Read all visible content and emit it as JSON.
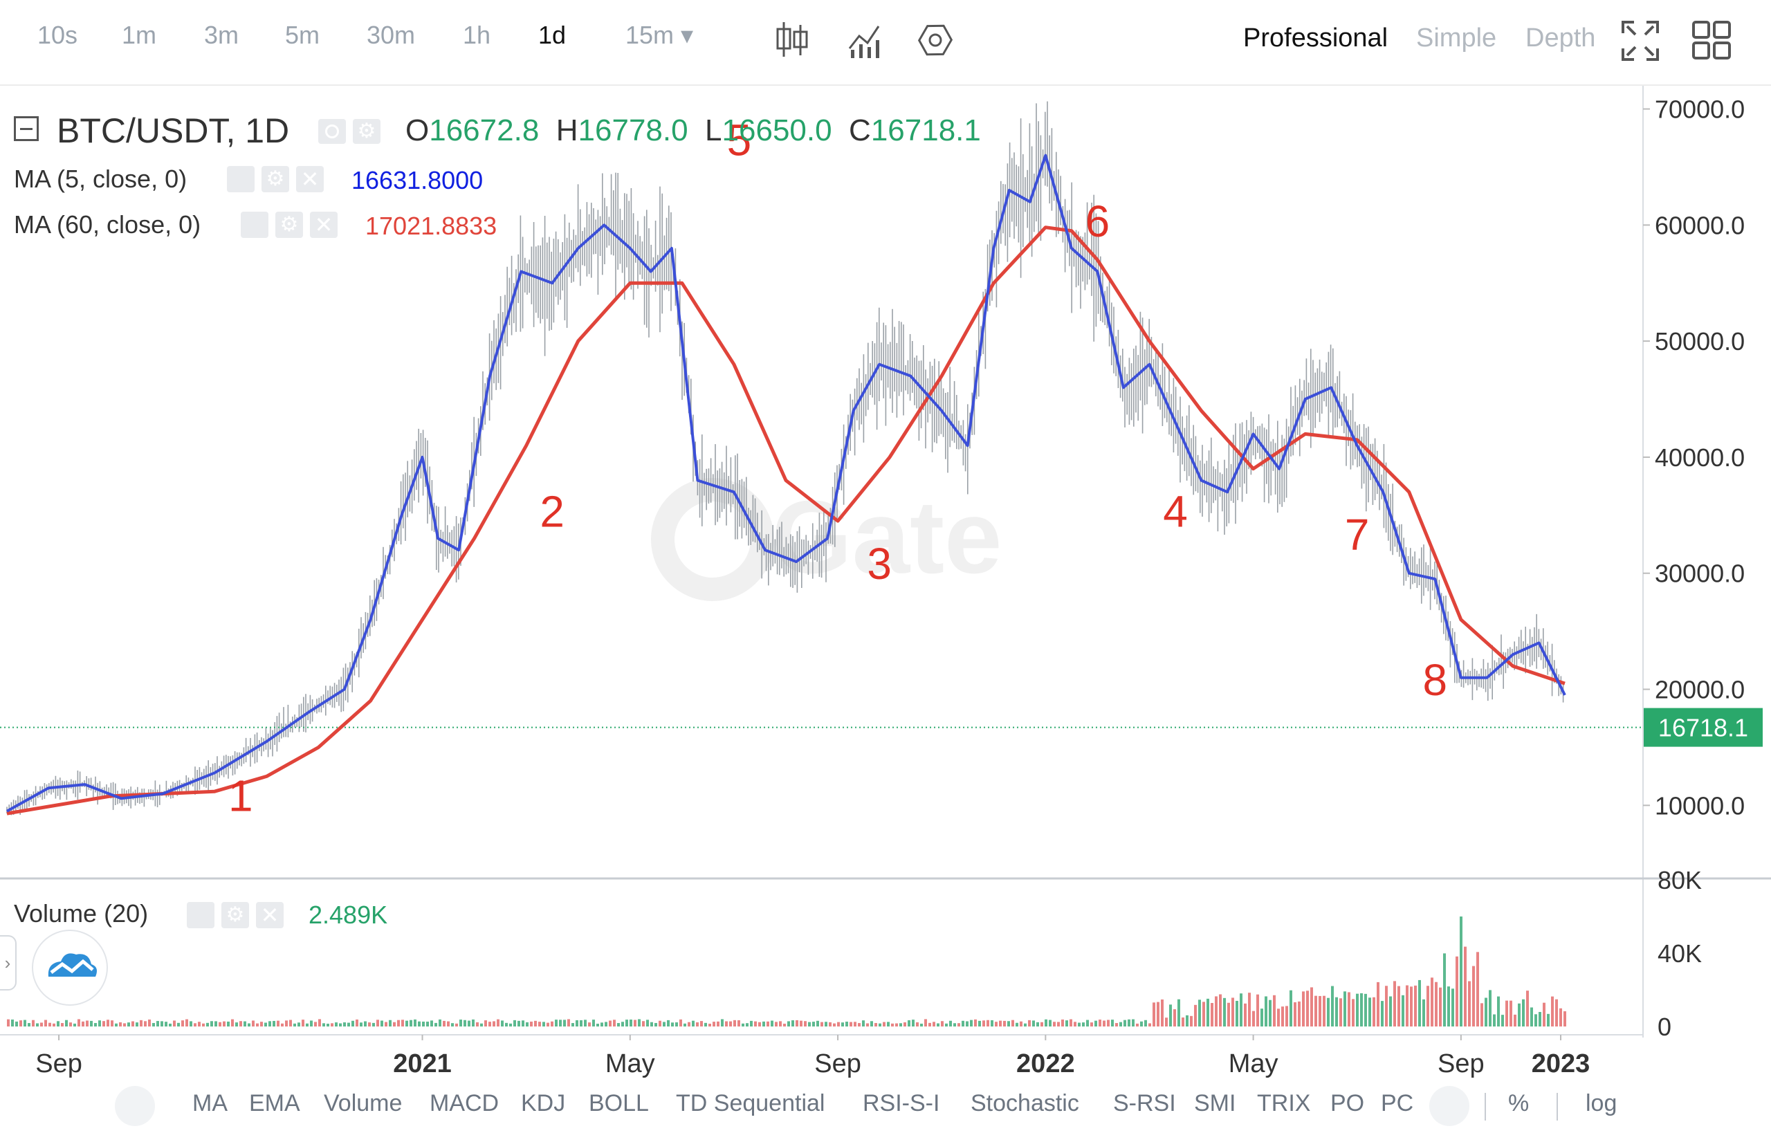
{
  "toolbar": {
    "timeframes": [
      "10s",
      "1m",
      "3m",
      "5m",
      "30m",
      "1h",
      "1d",
      "15m ▾"
    ],
    "active_timeframe": "1d",
    "modes": [
      "Professional",
      "Simple",
      "Depth"
    ],
    "active_mode": "Professional"
  },
  "legend": {
    "pair": "BTC/USDT, 1D",
    "o_label": "O",
    "o_value": "16672.8",
    "h_label": "H",
    "h_value": "16778.0",
    "l_label": "L",
    "l_value": "16650.0",
    "c_label": "C",
    "c_value": "16718.1",
    "ma5_label": "MA (5, close, 0)",
    "ma5_value": "16631.8000",
    "ma60_label": "MA (60, close, 0)",
    "ma60_value": "17021.8833",
    "volume_label": "Volume (20)",
    "volume_value": "2.489K"
  },
  "colors": {
    "up": "#26a269",
    "down": "#e05a5a",
    "ma5": "#3b4fd8",
    "ma60": "#e0443a",
    "annot": "#e03126",
    "price_tag": "#2aa86b",
    "candle": "#9aa0a6"
  },
  "watermark": "Gate",
  "chart_data": {
    "type": "line",
    "title": "BTC/USDT, 1D",
    "current_price": 16718.1,
    "current_price_label": "16718.1",
    "x_ticks": [
      "Sep",
      "2021",
      "May",
      "Sep",
      "2022",
      "May",
      "Sep",
      "2023"
    ],
    "y_ticks": [
      "70000.0",
      "60000.0",
      "50000.0",
      "40000.0",
      "30000.0",
      "20000.0",
      "10000.0"
    ],
    "ylim": [
      4000,
      72000
    ],
    "volume_ticks": [
      "80K",
      "40K",
      "0"
    ],
    "volume_ylim": [
      0,
      80000
    ],
    "x_range": [
      0,
      30
    ],
    "x_tick_values": [
      1,
      8,
      12,
      16,
      20,
      24,
      28,
      32
    ],
    "note_x": "x is months since July 2020",
    "series": [
      {
        "name": "MA (5, close, 0)",
        "x": [
          0,
          0.8,
          1.5,
          2.2,
          3,
          4,
          5,
          5.8,
          6.5,
          7,
          7.6,
          8,
          8.3,
          8.7,
          9.3,
          9.9,
          10.5,
          11,
          11.5,
          12,
          12.4,
          12.8,
          13.3,
          14,
          14.6,
          15.2,
          15.8,
          16.3,
          16.8,
          17.4,
          18,
          18.5,
          19,
          19.3,
          19.7,
          20,
          20.5,
          21,
          21.5,
          22,
          22.5,
          23,
          23.5,
          24,
          24.5,
          25,
          25.5,
          26,
          26.5,
          27,
          27.5,
          28,
          28.5,
          29,
          29.5,
          30
        ],
        "values": [
          9500,
          11500,
          11800,
          10600,
          11000,
          12800,
          15500,
          18000,
          20000,
          26000,
          35000,
          40000,
          33000,
          32000,
          47000,
          56000,
          55000,
          58000,
          60000,
          58000,
          56000,
          58000,
          38000,
          37000,
          32000,
          31000,
          33000,
          44000,
          48000,
          47000,
          44000,
          41000,
          58000,
          63000,
          62000,
          66000,
          58000,
          56000,
          46000,
          48000,
          43000,
          38000,
          37000,
          42000,
          39000,
          45000,
          46000,
          41000,
          37000,
          30000,
          29500,
          21000,
          21000,
          23000,
          24000,
          19500
        ]
      },
      {
        "name": "MA (60, close, 0)",
        "x": [
          0,
          2,
          4,
          5,
          6,
          7,
          8,
          9,
          10,
          11,
          12,
          13,
          14,
          15,
          16,
          17,
          18,
          19,
          20,
          20.5,
          21,
          22,
          23,
          24,
          25,
          26,
          27,
          28,
          29,
          30
        ],
        "values": [
          9300,
          10800,
          11200,
          12500,
          15000,
          19000,
          26000,
          33000,
          41000,
          50000,
          55000,
          55000,
          48000,
          38000,
          34500,
          40000,
          47000,
          55000,
          59800,
          59500,
          57000,
          50000,
          44000,
          39000,
          42000,
          41500,
          37000,
          26000,
          22000,
          20500
        ]
      }
    ],
    "annotations": [
      {
        "label": "1",
        "x": 4.5,
        "y": 9500
      },
      {
        "label": "2",
        "x": 10.5,
        "y": 34000
      },
      {
        "label": "5",
        "x": 14.1,
        "y": 66000
      },
      {
        "label": "3",
        "x": 16.8,
        "y": 29500
      },
      {
        "label": "6",
        "x": 21.0,
        "y": 59000
      },
      {
        "label": "4",
        "x": 22.5,
        "y": 34000
      },
      {
        "label": "7",
        "x": 26.0,
        "y": 32000
      },
      {
        "label": "8",
        "x": 27.5,
        "y": 19500
      }
    ]
  },
  "indicators": [
    "MA",
    "EMA",
    "Volume",
    "MACD",
    "KDJ",
    "BOLL",
    "TD Sequential",
    "RSI-S-I",
    "Stochastic",
    "S-RSI",
    "SMI",
    "TRIX",
    "PO",
    "PC"
  ],
  "percent_label": "%",
  "log_label": "log"
}
